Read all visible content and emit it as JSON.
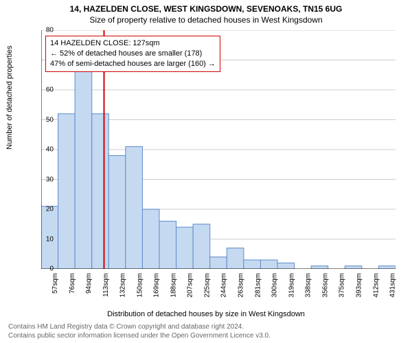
{
  "title_main": "14, HAZELDEN CLOSE, WEST KINGSDOWN, SEVENOAKS, TN15 6UG",
  "title_sub": "Size of property relative to detached houses in West Kingsdown",
  "y_label": "Number of detached properties",
  "x_label": "Distribution of detached houses by size in West Kingsdown",
  "info_line1": "14 HAZELDEN CLOSE: 127sqm",
  "info_line2": "← 52% of detached houses are smaller (178)",
  "info_line3": "47% of semi-detached houses are larger (160) →",
  "footer_line1": "Contains HM Land Registry data © Crown copyright and database right 2024.",
  "footer_line2": "Contains public sector information licensed under the Open Government Licence v3.0.",
  "chart": {
    "type": "histogram",
    "ylim": [
      0,
      80
    ],
    "ytick_step": 10,
    "background_color": "#ffffff",
    "grid_color": "#cccccc",
    "axis_color": "#000000",
    "bar_fill": "#c5d9f1",
    "bar_stroke": "#5b8bc9",
    "marker_color": "#cc0000",
    "marker_x_value": 127,
    "x_start": 57,
    "x_step": 18.8,
    "x_categories": [
      "57sqm",
      "76sqm",
      "94sqm",
      "113sqm",
      "132sqm",
      "150sqm",
      "169sqm",
      "188sqm",
      "207sqm",
      "225sqm",
      "244sqm",
      "263sqm",
      "281sqm",
      "300sqm",
      "319sqm",
      "338sqm",
      "356sqm",
      "375sqm",
      "393sqm",
      "412sqm",
      "431sqm"
    ],
    "values": [
      21,
      52,
      67,
      52,
      38,
      41,
      20,
      16,
      14,
      15,
      4,
      7,
      3,
      3,
      2,
      0,
      1,
      0,
      1,
      0,
      1
    ],
    "title_fontsize": 12,
    "label_fontsize": 11,
    "tick_fontsize": 10
  }
}
